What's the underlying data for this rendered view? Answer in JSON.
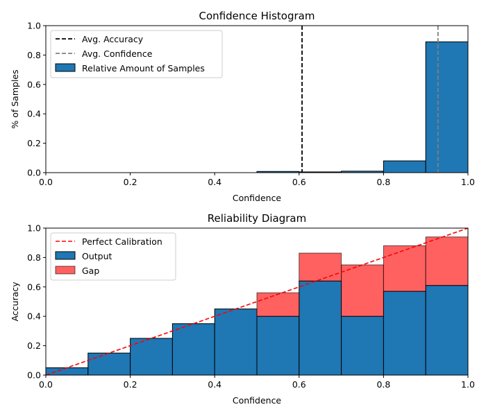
{
  "chart_data": [
    {
      "type": "bar",
      "title": "Confidence Histogram",
      "xlabel": "Confidence",
      "ylabel": "% of Samples",
      "xlim": [
        0.0,
        1.0
      ],
      "ylim": [
        0.0,
        1.0
      ],
      "xticks": [
        "0.0",
        "0.2",
        "0.4",
        "0.6",
        "0.8",
        "1.0"
      ],
      "yticks": [
        "0.0",
        "0.2",
        "0.4",
        "0.6",
        "0.8",
        "1.0"
      ],
      "grid": false,
      "legend_placement": "top-left",
      "bin_width": 0.1,
      "bin_starts": [
        0.0,
        0.1,
        0.2,
        0.3,
        0.4,
        0.5,
        0.6,
        0.7,
        0.8,
        0.9
      ],
      "series": [
        {
          "name": "Relative Amount of Samples",
          "color": "#1f77b4",
          "values": [
            0.0,
            0.0,
            0.0,
            0.0,
            0.0,
            0.008,
            0.005,
            0.01,
            0.08,
            0.89
          ]
        }
      ],
      "vlines": [
        {
          "name": "Avg. Accuracy",
          "x": 0.607,
          "color": "#000000"
        },
        {
          "name": "Avg. Confidence",
          "x": 0.929,
          "color": "#808080"
        }
      ],
      "legend": [
        "Avg. Accuracy",
        "Avg. Confidence",
        "Relative Amount of Samples"
      ]
    },
    {
      "type": "bar",
      "title": "Reliability Diagram",
      "xlabel": "Confidence",
      "ylabel": "Accuracy",
      "xlim": [
        0.0,
        1.0
      ],
      "ylim": [
        0.0,
        1.0
      ],
      "xticks": [
        "0.0",
        "0.2",
        "0.4",
        "0.6",
        "0.8",
        "1.0"
      ],
      "yticks": [
        "0.0",
        "0.2",
        "0.4",
        "0.6",
        "0.8",
        "1.0"
      ],
      "grid": false,
      "legend_placement": "top-left",
      "bin_width": 0.1,
      "bin_starts": [
        0.0,
        0.1,
        0.2,
        0.3,
        0.4,
        0.5,
        0.6,
        0.7,
        0.8,
        0.9
      ],
      "series": [
        {
          "name": "Output",
          "color": "#1f77b4",
          "values": [
            0.05,
            0.15,
            0.25,
            0.35,
            0.45,
            0.4,
            0.64,
            0.4,
            0.57,
            0.61
          ]
        },
        {
          "name": "Gap",
          "color": "#ff0000",
          "gap_tops": [
            null,
            null,
            null,
            null,
            null,
            0.56,
            0.83,
            0.75,
            0.88,
            0.94
          ]
        }
      ],
      "diagonal": {
        "name": "Perfect Calibration",
        "color": "#ff0000"
      },
      "legend": [
        "Perfect Calibration",
        "Output",
        "Gap"
      ]
    }
  ]
}
